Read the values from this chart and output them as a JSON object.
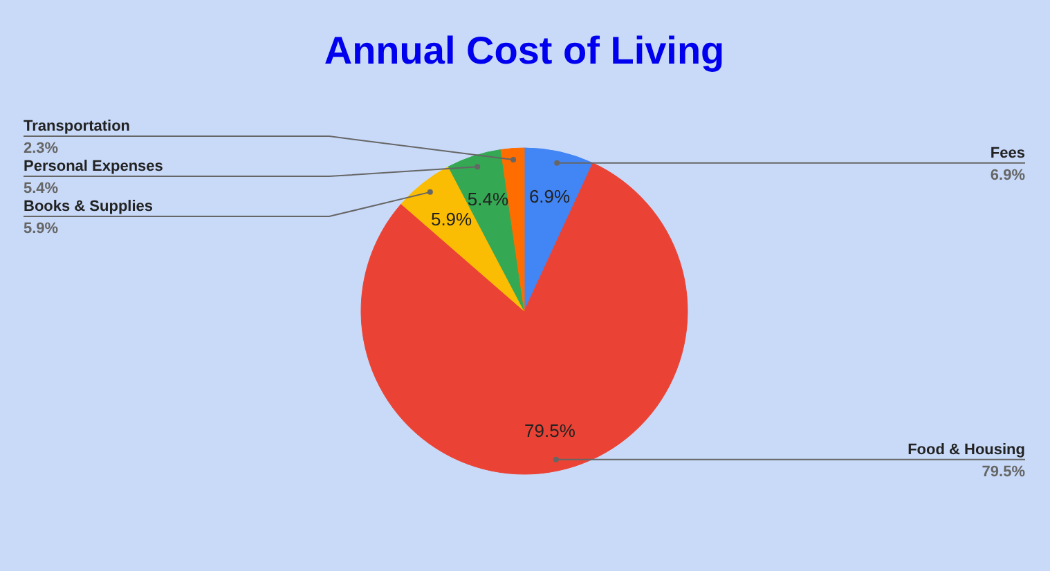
{
  "chart_data": {
    "type": "pie",
    "title": "Annual Cost of Living",
    "categories": [
      "Fees",
      "Food & Housing",
      "Books & Supplies",
      "Personal Expenses",
      "Transportation"
    ],
    "values": [
      6.9,
      79.5,
      5.9,
      5.4,
      2.3
    ],
    "colors": [
      "#4285f4",
      "#ea4335",
      "#fbbc04",
      "#34a853",
      "#ff6d01"
    ],
    "value_labels": [
      "6.9%",
      "79.5%",
      "5.9%",
      "5.4%",
      "2.3%"
    ]
  }
}
